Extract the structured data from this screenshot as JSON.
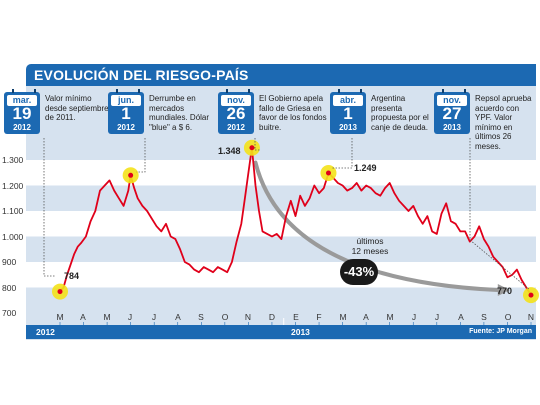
{
  "title": "EVOLUCIÓN DEL RIESGO-PAÍS",
  "source": "Fuente: JP Morgan",
  "colors": {
    "accent": "#1c69b2",
    "line": "#e0001a",
    "highlight": "#f4e21a",
    "plot_band": "#ffffff",
    "plot_bg": "#d6e2ef"
  },
  "callouts": [
    {
      "month": "mar.",
      "day": "19",
      "year": "2012",
      "text": "Valor mínimo desde septiembre de 2011."
    },
    {
      "month": "jun.",
      "day": "1",
      "year": "2012",
      "text": "Derrumbe en mercados mundiales. Dólar \"blue\" a $ 6."
    },
    {
      "month": "nov.",
      "day": "26",
      "year": "2012",
      "text": "El Gobierno apela fallo de Griesa en favor de los fondos buitre."
    },
    {
      "month": "abr.",
      "day": "1",
      "year": "2013",
      "text": "Argentina presenta propuesta por el canje de deuda."
    },
    {
      "month": "nov.",
      "day": "27",
      "year": "2013",
      "text": "Repsol aprueba acuerdo con YPF. Valor mínimo en últimos 26 meses."
    }
  ],
  "point_labels": {
    "p1": "784",
    "p3": "1.348",
    "p4": "1.249",
    "p5": "770"
  },
  "annotation": {
    "line1": "últimos",
    "line2": "12 meses",
    "badge": "-43%"
  },
  "chart_data": {
    "type": "line",
    "title": "EVOLUCIÓN DEL RIESGO-PAÍS",
    "xlabel": "",
    "ylabel": "",
    "ylim": [
      700,
      1300
    ],
    "yticks": [
      "1.300",
      "1.200",
      "1.100",
      "1.000",
      "900",
      "800",
      "700"
    ],
    "ytick_values": [
      1300,
      1200,
      1100,
      1000,
      900,
      800,
      700
    ],
    "xticks": [
      "M",
      "A",
      "M",
      "J",
      "J",
      "A",
      "S",
      "O",
      "N",
      "D",
      "E",
      "F",
      "M",
      "A",
      "M",
      "J",
      "J",
      "A",
      "S",
      "O",
      "N"
    ],
    "years": [
      "2012",
      "2013"
    ],
    "grid": "horizontal bands",
    "legend": "none",
    "series": [
      {
        "month_index": [
          0,
          0.15,
          0.3,
          0.45,
          0.6,
          0.75,
          0.9,
          1.1,
          1.3,
          1.5,
          1.7,
          1.9,
          2.1,
          2.3,
          2.5,
          2.7,
          2.9,
          3.0,
          3.15,
          3.3,
          3.5,
          3.7,
          3.9,
          4.1,
          4.3,
          4.5,
          4.7,
          4.9,
          5.1,
          5.3,
          5.5,
          5.7,
          5.9,
          6.1,
          6.3,
          6.5,
          6.7,
          6.9,
          7.1,
          7.3,
          7.5,
          7.7,
          7.85,
          8.0,
          8.15,
          8.3,
          8.45,
          8.6,
          8.8,
          9.0,
          9.2,
          9.4,
          9.6,
          9.8,
          10.0,
          10.2,
          10.4,
          10.6,
          10.8,
          11.0,
          11.2,
          11.4,
          11.6,
          11.8,
          12.0,
          12.2,
          12.4,
          12.6,
          12.8,
          13.0,
          13.2,
          13.4,
          13.6,
          13.8,
          14.0,
          14.2,
          14.4,
          14.6,
          14.8,
          15.0,
          15.2,
          15.4,
          15.6,
          15.8,
          16.0,
          16.2,
          16.4,
          16.6,
          16.8,
          17.0,
          17.2,
          17.4,
          17.6,
          17.8,
          18.0,
          18.2,
          18.4,
          18.6,
          18.8,
          19.0,
          19.2,
          19.4,
          19.6,
          19.8,
          20.0
        ],
        "values": [
          784,
          800,
          850,
          890,
          930,
          960,
          975,
          1000,
          1060,
          1100,
          1180,
          1200,
          1220,
          1180,
          1150,
          1120,
          1180,
          1240,
          1190,
          1150,
          1120,
          1100,
          1070,
          1040,
          1020,
          1050,
          1000,
          990,
          950,
          900,
          890,
          870,
          860,
          880,
          870,
          860,
          880,
          870,
          860,
          900,
          980,
          1050,
          1150,
          1250,
          1348,
          1200,
          1100,
          1020,
          1010,
          1000,
          1010,
          990,
          1080,
          1140,
          1080,
          1160,
          1120,
          1150,
          1200,
          1170,
          1190,
          1249,
          1230,
          1210,
          1200,
          1180,
          1190,
          1210,
          1180,
          1200,
          1190,
          1170,
          1160,
          1190,
          1210,
          1170,
          1140,
          1120,
          1100,
          1120,
          1080,
          1050,
          1080,
          1020,
          1010,
          1090,
          1130,
          1060,
          1050,
          1020,
          1020,
          980,
          1000,
          1040,
          990,
          960,
          920,
          900,
          880,
          840,
          850,
          870,
          830,
          800,
          770
        ]
      }
    ],
    "highlights": [
      {
        "month_index": 0,
        "value": 784
      },
      {
        "month_index": 3.0,
        "value": 1240
      },
      {
        "month_index": 8.15,
        "value": 1348
      },
      {
        "month_index": 11.4,
        "value": 1249
      },
      {
        "month_index": 20.0,
        "value": 770
      }
    ],
    "trend_arrow": {
      "from": {
        "month_index": 8.3,
        "value": 1290
      },
      "to": {
        "month_index": 19.1,
        "value": 790
      }
    }
  }
}
